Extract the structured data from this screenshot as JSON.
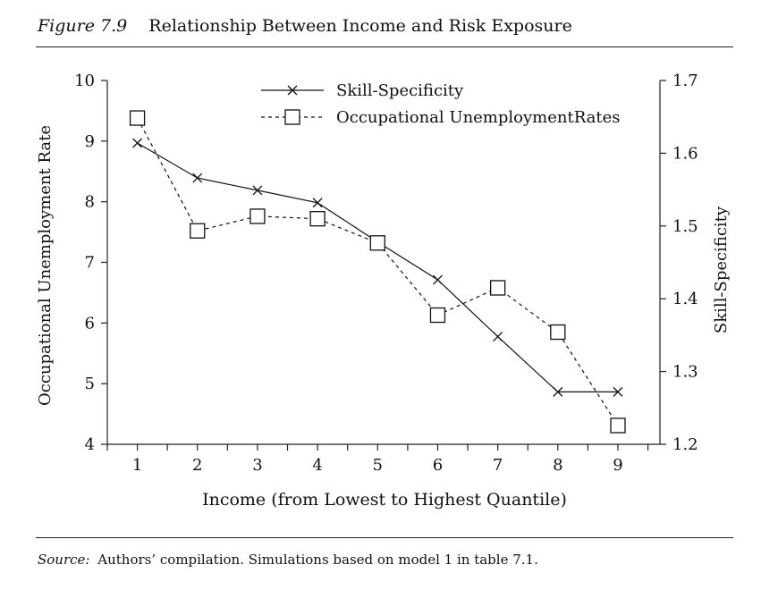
{
  "figure": {
    "label": "Figure 7.9",
    "title": "Relationship Between Income and Risk Exposure"
  },
  "source": {
    "label": "Source:",
    "text": "Authors’ compilation. Simulations based on model 1 in table 7.1."
  },
  "chart_data": {
    "type": "line",
    "xlabel": "Income (from Lowest to Highest Quantile)",
    "ylabel_left": "Occupational Unemployment Rate",
    "ylabel_right": "Skill-Specificity",
    "x": [
      1,
      2,
      3,
      4,
      5,
      6,
      7,
      8,
      9
    ],
    "xlim": [
      0.5,
      9.7
    ],
    "x_ticks": [
      "1",
      "2",
      "3",
      "4",
      "5",
      "6",
      "7",
      "8",
      "9"
    ],
    "ylim_left": [
      4,
      10
    ],
    "y_ticks_left": [
      "4",
      "5",
      "6",
      "7",
      "8",
      "9",
      "10"
    ],
    "ylim_right": [
      1.2,
      1.7
    ],
    "y_ticks_right": [
      "1.2",
      "1.3",
      "1.4",
      "1.5",
      "1.6",
      "1.7"
    ],
    "legend_position": "top-center",
    "grid": false,
    "series": [
      {
        "name": "Skill-Specificity",
        "axis": "right",
        "marker": "x",
        "line_style": "solid",
        "values": [
          1.614,
          1.566,
          1.549,
          1.532,
          1.478,
          1.426,
          1.348,
          1.272,
          1.272
        ]
      },
      {
        "name": "Occupational UnemploymentRates",
        "axis": "left",
        "marker": "square",
        "line_style": "dashed",
        "values": [
          9.38,
          7.52,
          7.76,
          7.72,
          7.32,
          6.13,
          6.58,
          5.85,
          4.31
        ]
      }
    ]
  }
}
